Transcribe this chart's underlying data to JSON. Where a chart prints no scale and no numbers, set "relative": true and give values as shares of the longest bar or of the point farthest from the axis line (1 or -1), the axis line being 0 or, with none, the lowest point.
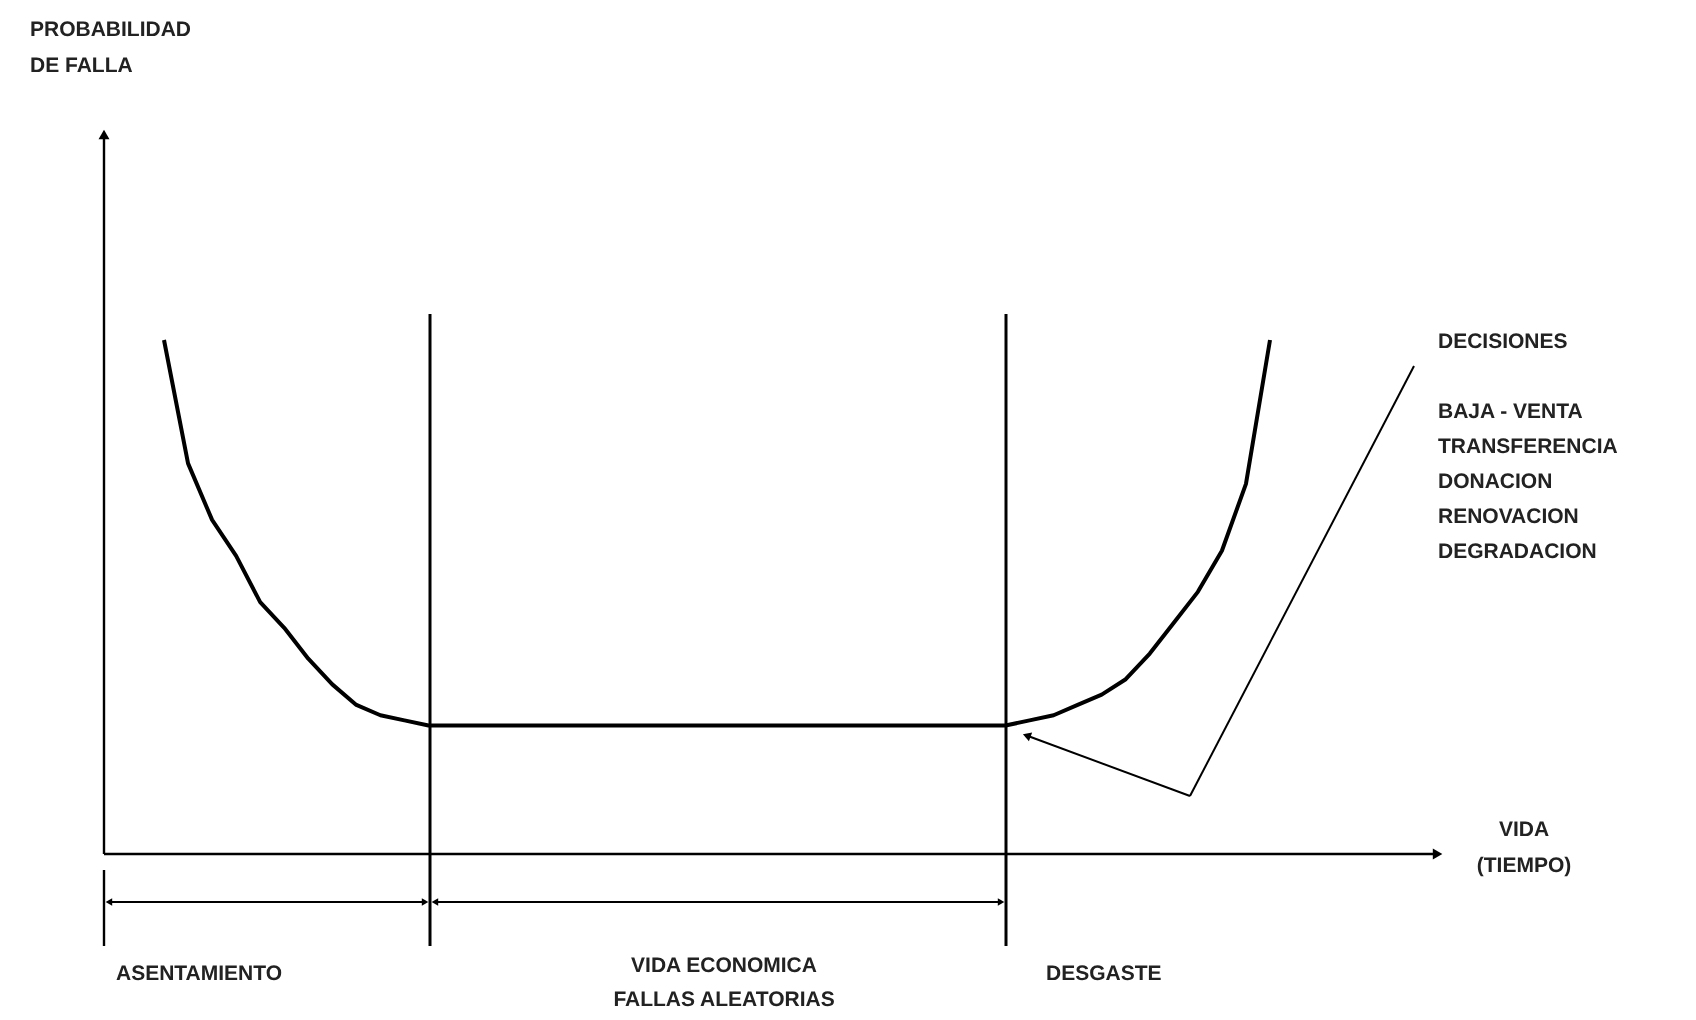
{
  "chart_data": {
    "type": "line",
    "relative": true,
    "categories": [
      null,
      null,
      null,
      null,
      null,
      null,
      null,
      null,
      null,
      null,
      null,
      null,
      null,
      null,
      null,
      null,
      null,
      null,
      null,
      null,
      null,
      null,
      null,
      null,
      null,
      null,
      null,
      null,
      null,
      null,
      null,
      null,
      null,
      null,
      null,
      null,
      null,
      null,
      null,
      null,
      null,
      null,
      null,
      null,
      null,
      null,
      null
    ],
    "series": [
      {
        "color": "#000000",
        "values": [
          1.0,
          0.76,
          0.65,
          0.58,
          0.49,
          0.44,
          0.38,
          0.33,
          0.29,
          0.27,
          0.26,
          0.25,
          0.25,
          0.25,
          0.25,
          0.25,
          0.25,
          0.25,
          0.25,
          0.25,
          0.25,
          0.25,
          0.25,
          0.25,
          0.25,
          0.25,
          0.25,
          0.25,
          0.25,
          0.25,
          0.25,
          0.25,
          0.25,
          0.25,
          0.25,
          0.25,
          0.26,
          0.27,
          0.29,
          0.31,
          0.34,
          0.39,
          0.45,
          0.51,
          0.59,
          0.72,
          1.0
        ]
      }
    ],
    "annotations": [
      "PROBABILIDAD\nDE FALLA",
      "VIDA\n(TIEMPO)",
      "DECISIONES",
      "BAJA - VENTA\nTRANSFERENCIA\nDONACION\nRENOVACION\nDEGRADACION",
      "ASENTAMIENTO",
      "VIDA ECONOMICA\nFALLAS ALEATORIAS",
      "DESGASTE"
    ],
    "marker": "none",
    "line_style": "solid"
  }
}
